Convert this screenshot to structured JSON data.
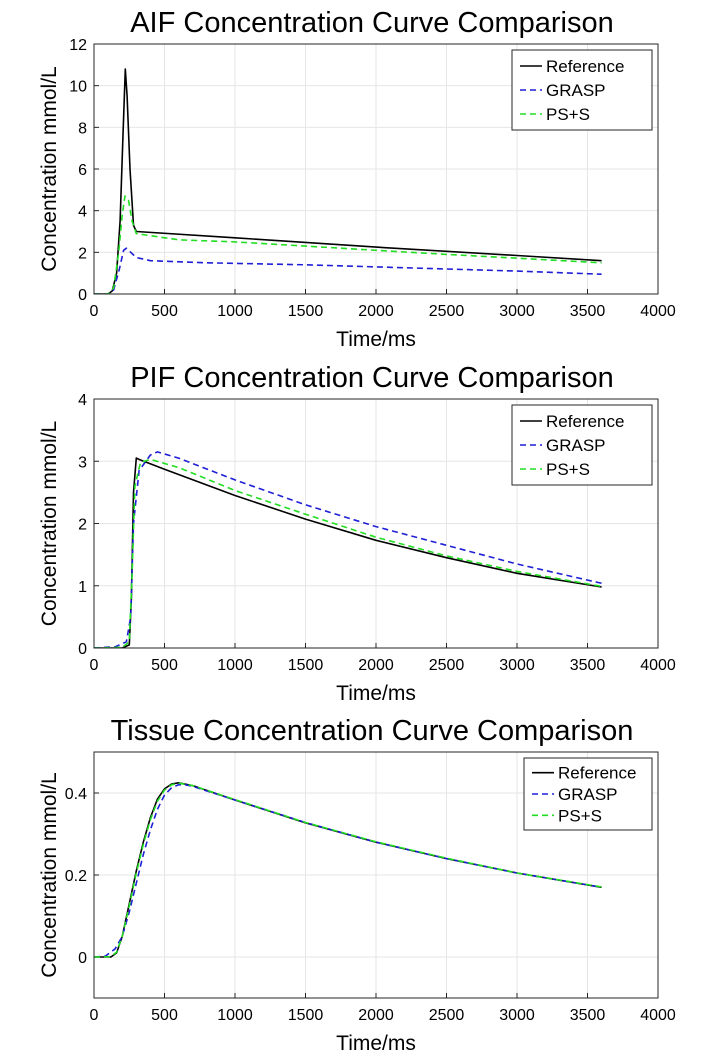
{
  "chart_data": [
    {
      "type": "line",
      "title": "AIF Concentration Curve Comparison",
      "xlabel": "Time/ms",
      "ylabel": "Concentration mmol/L",
      "xlim": [
        0,
        4000
      ],
      "ylim": [
        0,
        12
      ],
      "xticks": [
        0,
        500,
        1000,
        1500,
        2000,
        2500,
        3000,
        3500,
        4000
      ],
      "yticks": [
        0,
        2,
        4,
        6,
        8,
        10,
        12
      ],
      "grid": true,
      "legend_position": "top-right",
      "series": [
        {
          "name": "Reference",
          "color": "#000000",
          "dash": "solid",
          "points": [
            [
              0,
              0
            ],
            [
              100,
              0
            ],
            [
              130,
              0.15
            ],
            [
              160,
              1.0
            ],
            [
              185,
              3.5
            ],
            [
              205,
              7.5
            ],
            [
              222,
              10.8
            ],
            [
              235,
              9.5
            ],
            [
              255,
              6.0
            ],
            [
              280,
              3.3
            ],
            [
              300,
              3.0
            ],
            [
              1000,
              2.7
            ],
            [
              2000,
              2.25
            ],
            [
              3000,
              1.85
            ],
            [
              3600,
              1.6
            ]
          ]
        },
        {
          "name": "GRASP",
          "color": "#1f1fd6",
          "dash": "dashed",
          "points": [
            [
              0,
              0
            ],
            [
              100,
              0
            ],
            [
              140,
              0.2
            ],
            [
              180,
              1.2
            ],
            [
              210,
              2.1
            ],
            [
              230,
              2.2
            ],
            [
              260,
              2.0
            ],
            [
              300,
              1.75
            ],
            [
              400,
              1.6
            ],
            [
              800,
              1.5
            ],
            [
              1500,
              1.4
            ],
            [
              2000,
              1.3
            ],
            [
              3000,
              1.1
            ],
            [
              3600,
              0.95
            ]
          ]
        },
        {
          "name": "PS+S",
          "color": "#22dd22",
          "dash": "dashed",
          "points": [
            [
              0,
              0
            ],
            [
              100,
              0
            ],
            [
              140,
              0.3
            ],
            [
              175,
              2.0
            ],
            [
              200,
              3.8
            ],
            [
              220,
              4.7
            ],
            [
              245,
              4.5
            ],
            [
              270,
              3.5
            ],
            [
              300,
              2.9
            ],
            [
              600,
              2.6
            ],
            [
              1000,
              2.5
            ],
            [
              1500,
              2.3
            ],
            [
              2000,
              2.1
            ],
            [
              2500,
              1.9
            ],
            [
              3000,
              1.72
            ],
            [
              3600,
              1.5
            ]
          ]
        }
      ]
    },
    {
      "type": "line",
      "title": "PIF Concentration Curve Comparison",
      "xlabel": "Time/ms",
      "ylabel": "Concentration mmol/L",
      "xlim": [
        0,
        4000
      ],
      "ylim": [
        0,
        4
      ],
      "xticks": [
        0,
        500,
        1000,
        1500,
        2000,
        2500,
        3000,
        3500,
        4000
      ],
      "yticks": [
        0,
        1,
        2,
        3,
        4
      ],
      "grid": true,
      "legend_position": "top-right",
      "series": [
        {
          "name": "Reference",
          "color": "#000000",
          "dash": "solid",
          "points": [
            [
              0,
              0
            ],
            [
              200,
              0
            ],
            [
              250,
              0.05
            ],
            [
              265,
              0.8
            ],
            [
              280,
              2.5
            ],
            [
              300,
              3.05
            ],
            [
              330,
              3.02
            ],
            [
              500,
              2.87
            ],
            [
              1000,
              2.45
            ],
            [
              1500,
              2.07
            ],
            [
              2000,
              1.73
            ],
            [
              2500,
              1.45
            ],
            [
              3000,
              1.2
            ],
            [
              3600,
              0.98
            ]
          ]
        },
        {
          "name": "GRASP",
          "color": "#1f1fd6",
          "dash": "dashed",
          "points": [
            [
              0,
              0
            ],
            [
              150,
              0.02
            ],
            [
              230,
              0.1
            ],
            [
              260,
              0.5
            ],
            [
              280,
              2.0
            ],
            [
              320,
              2.85
            ],
            [
              400,
              3.1
            ],
            [
              450,
              3.15
            ],
            [
              600,
              3.05
            ],
            [
              1000,
              2.7
            ],
            [
              1500,
              2.3
            ],
            [
              2000,
              1.95
            ],
            [
              2500,
              1.65
            ],
            [
              3000,
              1.35
            ],
            [
              3600,
              1.04
            ]
          ]
        },
        {
          "name": "PS+S",
          "color": "#22dd22",
          "dash": "dashed",
          "points": [
            [
              0,
              0
            ],
            [
              200,
              0.01
            ],
            [
              250,
              0.1
            ],
            [
              270,
              1.2
            ],
            [
              290,
              2.6
            ],
            [
              330,
              2.98
            ],
            [
              400,
              3.03
            ],
            [
              600,
              2.9
            ],
            [
              1000,
              2.53
            ],
            [
              1500,
              2.15
            ],
            [
              2000,
              1.78
            ],
            [
              2500,
              1.48
            ],
            [
              3000,
              1.23
            ],
            [
              3600,
              0.99
            ]
          ]
        }
      ]
    },
    {
      "type": "line",
      "title": "Tissue Concentration Curve Comparison",
      "xlabel": "Time/ms",
      "ylabel": "Concentration mmol/L",
      "xlim": [
        0,
        4000
      ],
      "ylim": [
        -0.1,
        0.5
      ],
      "xticks": [
        0,
        500,
        1000,
        1500,
        2000,
        2500,
        3000,
        3500,
        4000
      ],
      "yticks": [
        0,
        0.2,
        0.4
      ],
      "grid": true,
      "legend_position": "top-right",
      "series": [
        {
          "name": "Reference",
          "color": "#000000",
          "dash": "solid",
          "points": [
            [
              0,
              0
            ],
            [
              120,
              0
            ],
            [
              160,
              0.01
            ],
            [
              200,
              0.05
            ],
            [
              250,
              0.13
            ],
            [
              300,
              0.21
            ],
            [
              350,
              0.28
            ],
            [
              400,
              0.34
            ],
            [
              450,
              0.385
            ],
            [
              500,
              0.41
            ],
            [
              550,
              0.422
            ],
            [
              600,
              0.425
            ],
            [
              700,
              0.418
            ],
            [
              1000,
              0.383
            ],
            [
              1500,
              0.327
            ],
            [
              2000,
              0.28
            ],
            [
              2500,
              0.24
            ],
            [
              3000,
              0.205
            ],
            [
              3600,
              0.17
            ]
          ]
        },
        {
          "name": "GRASP",
          "color": "#1f1fd6",
          "dash": "dashed",
          "points": [
            [
              0,
              0
            ],
            [
              80,
              0.002
            ],
            [
              150,
              0.02
            ],
            [
              200,
              0.05
            ],
            [
              250,
              0.11
            ],
            [
              300,
              0.18
            ],
            [
              350,
              0.25
            ],
            [
              400,
              0.31
            ],
            [
              450,
              0.36
            ],
            [
              500,
              0.395
            ],
            [
              550,
              0.413
            ],
            [
              600,
              0.42
            ],
            [
              650,
              0.42
            ],
            [
              700,
              0.416
            ],
            [
              1000,
              0.383
            ],
            [
              1500,
              0.328
            ],
            [
              2000,
              0.28
            ],
            [
              2500,
              0.24
            ],
            [
              3000,
              0.205
            ],
            [
              3600,
              0.17
            ]
          ]
        },
        {
          "name": "PS+S",
          "color": "#22dd22",
          "dash": "dashed",
          "points": [
            [
              0,
              0
            ],
            [
              120,
              0.001
            ],
            [
              160,
              0.012
            ],
            [
              200,
              0.05
            ],
            [
              250,
              0.125
            ],
            [
              300,
              0.205
            ],
            [
              350,
              0.275
            ],
            [
              400,
              0.335
            ],
            [
              450,
              0.38
            ],
            [
              500,
              0.407
            ],
            [
              550,
              0.42
            ],
            [
              600,
              0.424
            ],
            [
              700,
              0.418
            ],
            [
              1000,
              0.384
            ],
            [
              1500,
              0.328
            ],
            [
              2000,
              0.281
            ],
            [
              2500,
              0.241
            ],
            [
              3000,
              0.205
            ],
            [
              3600,
              0.171
            ]
          ]
        }
      ]
    }
  ]
}
